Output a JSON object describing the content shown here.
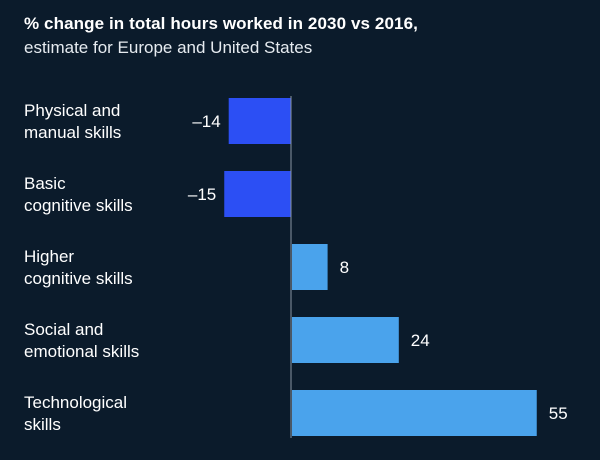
{
  "chart_data": {
    "type": "bar",
    "orientation": "horizontal",
    "title": "% change in total hours worked in 2030 vs 2016,",
    "subtitle": "estimate for Europe and United States",
    "categories": [
      [
        "Physical and",
        "manual skills"
      ],
      [
        "Basic",
        "cognitive skills"
      ],
      [
        "Higher",
        "cognitive skills"
      ],
      [
        "Social and",
        "emotional skills"
      ],
      [
        "Technological",
        "skills"
      ]
    ],
    "values": [
      -14,
      -15,
      8,
      24,
      55
    ],
    "value_labels": [
      "–14",
      "–15",
      "8",
      "24",
      "55"
    ],
    "colors": {
      "negative": "#2c4ff4",
      "positive": "#4aa3ec",
      "axis": "#8a96a3",
      "background": "#0b1b2b"
    },
    "xlim": [
      -15,
      55
    ],
    "grid": false,
    "legend": "none"
  }
}
